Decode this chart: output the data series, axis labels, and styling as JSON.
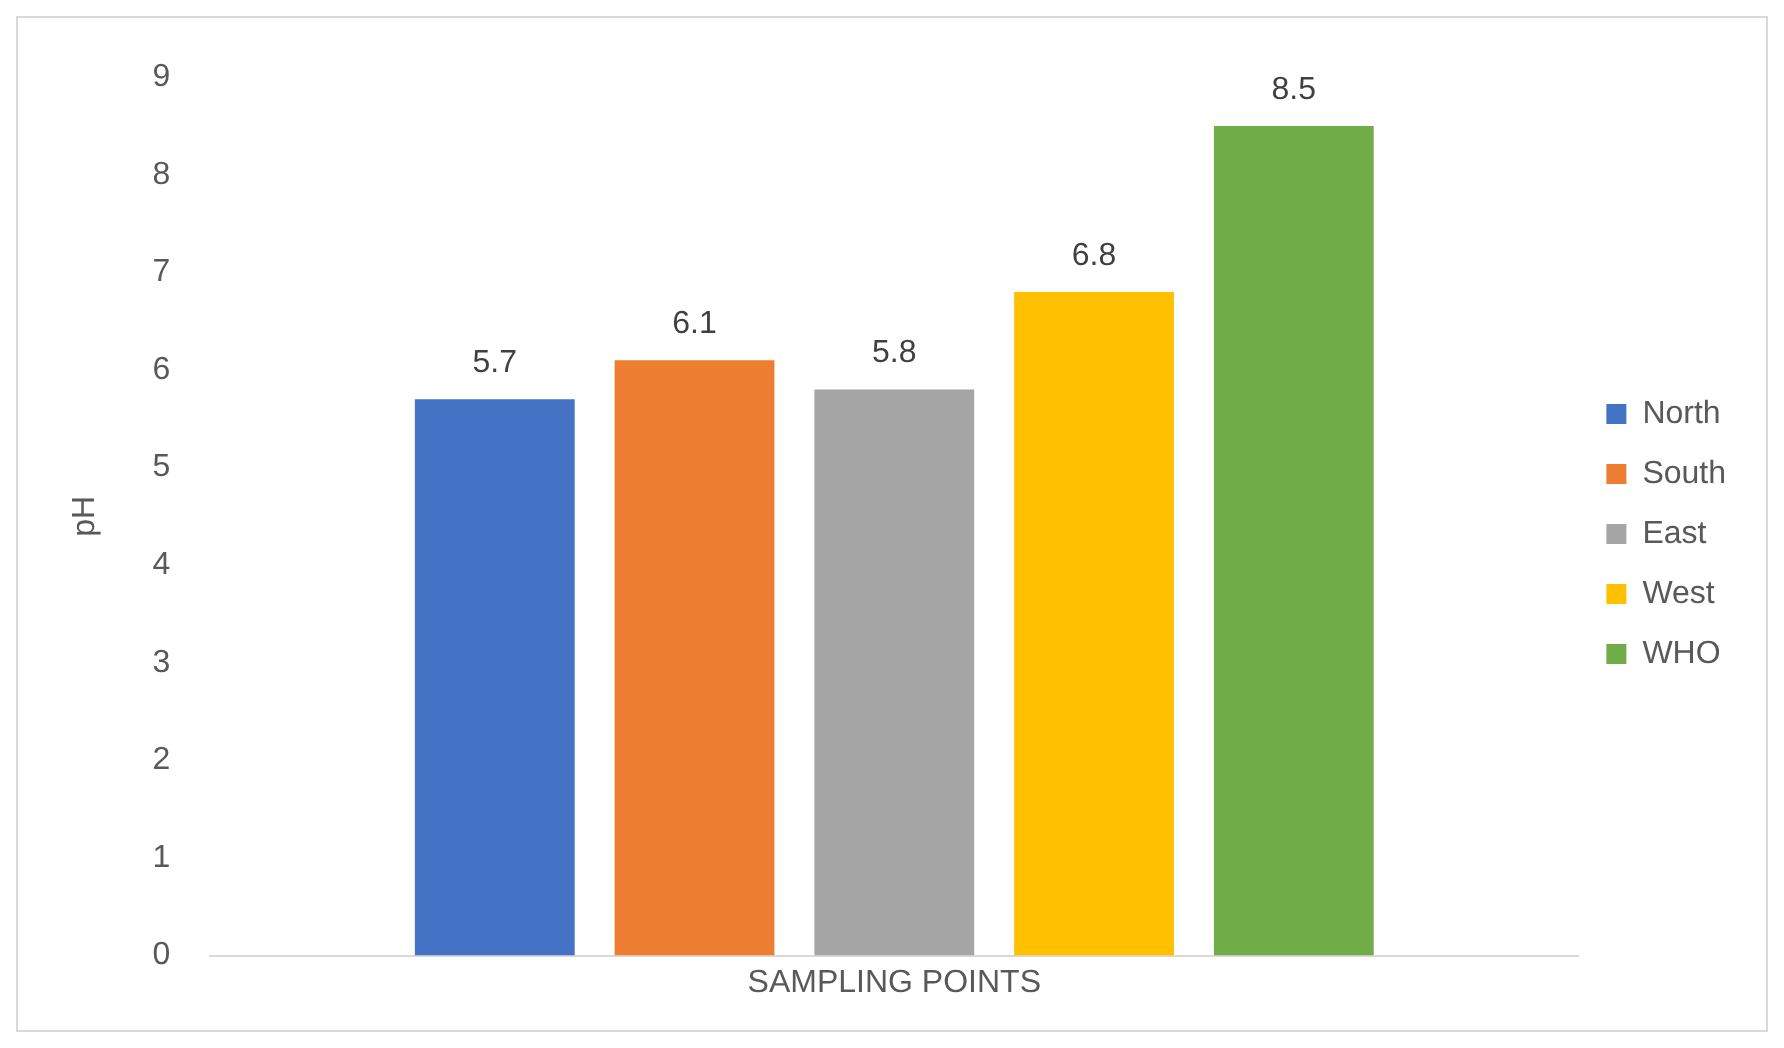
{
  "chart_data": {
    "type": "bar",
    "xlabel": "SAMPLING POINTS",
    "ylabel": "pH",
    "categories": [
      null
    ],
    "series": [
      {
        "name": "North",
        "color": "#4472c4",
        "values": [
          5.7
        ]
      },
      {
        "name": "South",
        "color": "#ed7d31",
        "values": [
          6.1
        ]
      },
      {
        "name": "East",
        "color": "#a5a5a5",
        "values": [
          5.8
        ]
      },
      {
        "name": "West",
        "color": "#ffc000",
        "values": [
          6.8
        ]
      },
      {
        "name": "WHO",
        "color": "#70ad47",
        "values": [
          8.5
        ]
      }
    ],
    "ylim": [
      0,
      9
    ],
    "yticks": [
      0,
      1,
      2,
      3,
      4,
      5,
      6,
      7,
      8,
      9
    ],
    "grid": false,
    "legend": "right",
    "data_labels": true
  }
}
